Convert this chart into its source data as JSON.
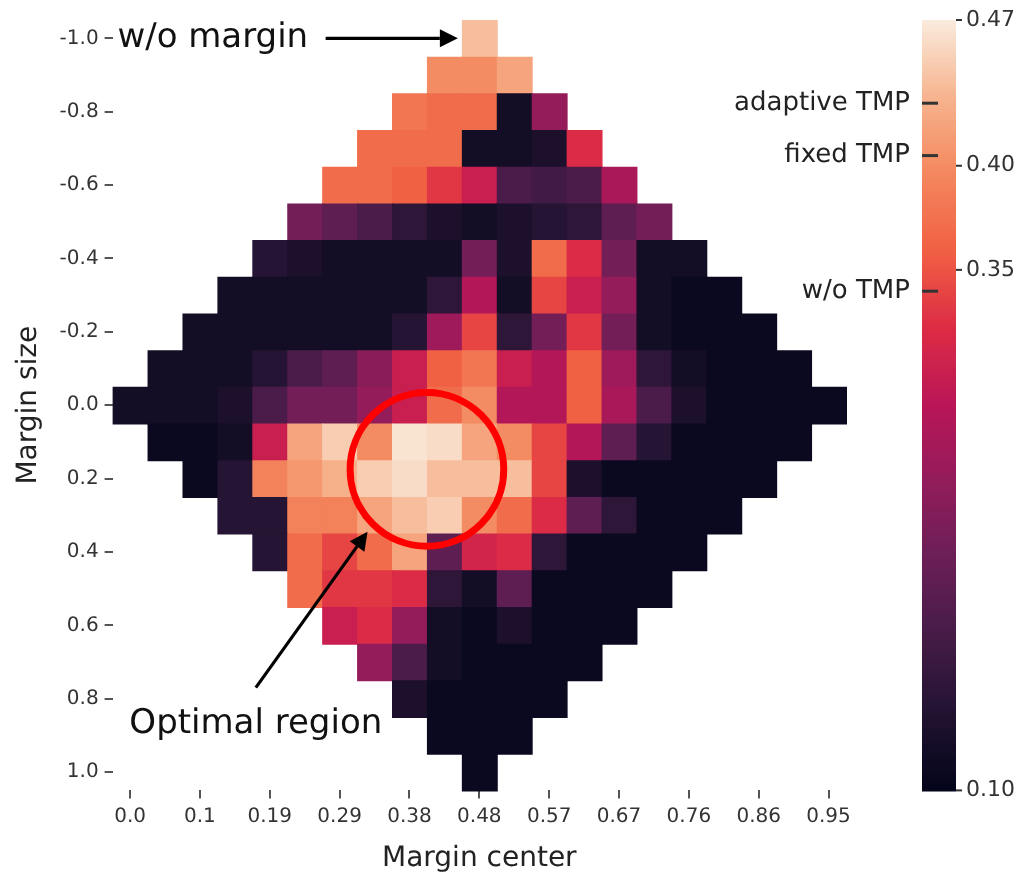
{
  "chart_data": {
    "type": "heatmap",
    "xlabel": "Margin center",
    "ylabel": "Margin size",
    "categories": [
      "0.0",
      null,
      "0.1",
      null,
      "0.19",
      null,
      "0.29",
      null,
      "0.38",
      null,
      "0.48",
      null,
      "0.57",
      null,
      "0.67",
      null,
      "0.76",
      null,
      "0.86",
      null,
      "0.95"
    ],
    "y_categories": [
      "-1.0",
      null,
      "-0.8",
      null,
      "-0.6",
      null,
      "-0.4",
      null,
      "-0.2",
      null,
      "0.0",
      null,
      "0.2",
      null,
      "0.4",
      null,
      "0.6",
      null,
      "0.8",
      null,
      "1.0"
    ],
    "cells": [
      [
        null,
        null,
        null,
        null,
        null,
        null,
        null,
        null,
        null,
        null,
        0.44,
        null,
        null,
        null,
        null,
        null,
        null,
        null,
        null,
        null,
        null
      ],
      [
        null,
        null,
        null,
        null,
        null,
        null,
        null,
        null,
        null,
        0.4,
        0.4,
        0.42,
        null,
        null,
        null,
        null,
        null,
        null,
        null,
        null,
        null
      ],
      [
        null,
        null,
        null,
        null,
        null,
        null,
        null,
        null,
        0.38,
        0.37,
        0.37,
        0.12,
        0.25,
        null,
        null,
        null,
        null,
        null,
        null,
        null,
        null
      ],
      [
        null,
        null,
        null,
        null,
        null,
        null,
        null,
        0.37,
        0.37,
        0.37,
        0.12,
        0.12,
        0.13,
        0.32,
        null,
        null,
        null,
        null,
        null,
        null,
        null
      ],
      [
        null,
        null,
        null,
        null,
        null,
        null,
        0.37,
        0.37,
        0.36,
        0.33,
        0.3,
        0.18,
        0.17,
        0.18,
        0.27,
        null,
        null,
        null,
        null,
        null,
        null
      ],
      [
        null,
        null,
        null,
        null,
        null,
        0.22,
        0.2,
        0.18,
        0.15,
        0.13,
        0.12,
        0.13,
        0.14,
        0.15,
        0.2,
        0.22,
        null,
        null,
        null,
        null,
        null
      ],
      [
        null,
        null,
        null,
        null,
        0.14,
        0.13,
        0.12,
        0.12,
        0.12,
        0.12,
        0.22,
        0.13,
        0.37,
        0.32,
        0.22,
        0.12,
        0.12,
        null,
        null,
        null,
        null
      ],
      [
        null,
        null,
        null,
        0.12,
        0.12,
        0.12,
        0.12,
        0.12,
        0.12,
        0.15,
        0.28,
        0.12,
        0.34,
        0.3,
        0.25,
        0.12,
        0.11,
        0.11,
        null,
        null,
        null
      ],
      [
        null,
        null,
        0.12,
        0.12,
        0.12,
        0.12,
        0.12,
        0.12,
        0.14,
        0.26,
        0.34,
        0.15,
        0.22,
        0.33,
        0.22,
        0.12,
        0.11,
        0.11,
        0.11,
        null,
        null
      ],
      [
        null,
        0.12,
        0.12,
        0.12,
        0.14,
        0.18,
        0.2,
        0.24,
        0.3,
        0.36,
        0.38,
        0.3,
        0.28,
        0.36,
        0.26,
        0.15,
        0.12,
        0.11,
        0.11,
        0.11,
        null
      ],
      [
        0.12,
        0.12,
        0.12,
        0.13,
        0.18,
        0.22,
        0.22,
        0.25,
        0.3,
        0.37,
        0.4,
        0.28,
        0.28,
        0.36,
        0.27,
        0.18,
        0.13,
        0.11,
        0.11,
        0.11,
        0.11
      ],
      [
        null,
        0.11,
        0.11,
        0.12,
        0.3,
        0.42,
        0.45,
        0.4,
        0.465,
        0.46,
        0.42,
        0.4,
        0.34,
        0.28,
        0.2,
        0.14,
        0.11,
        0.11,
        0.11,
        0.11,
        null
      ],
      [
        null,
        null,
        0.11,
        0.14,
        0.39,
        0.41,
        0.43,
        0.45,
        0.46,
        0.44,
        0.44,
        0.44,
        0.34,
        0.13,
        0.11,
        0.11,
        0.11,
        0.11,
        0.11,
        null,
        null
      ],
      [
        null,
        null,
        null,
        0.14,
        0.14,
        0.39,
        0.39,
        0.42,
        0.44,
        0.45,
        0.4,
        0.37,
        0.32,
        0.2,
        0.15,
        0.11,
        0.11,
        0.11,
        null,
        null,
        null
      ],
      [
        null,
        null,
        null,
        null,
        0.14,
        0.37,
        0.34,
        0.37,
        0.42,
        0.2,
        0.31,
        0.32,
        0.15,
        0.11,
        0.11,
        0.11,
        0.11,
        null,
        null,
        null,
        null
      ],
      [
        null,
        null,
        null,
        null,
        null,
        0.37,
        0.33,
        0.33,
        0.32,
        0.15,
        0.12,
        0.2,
        0.11,
        0.11,
        0.11,
        0.11,
        null,
        null,
        null,
        null,
        null
      ],
      [
        null,
        null,
        null,
        null,
        null,
        null,
        0.3,
        0.32,
        0.25,
        0.12,
        0.11,
        0.13,
        0.11,
        0.11,
        0.11,
        null,
        null,
        null,
        null,
        null,
        null
      ],
      [
        null,
        null,
        null,
        null,
        null,
        null,
        null,
        0.25,
        0.18,
        0.12,
        0.11,
        0.11,
        0.11,
        0.11,
        null,
        null,
        null,
        null,
        null,
        null,
        null
      ],
      [
        null,
        null,
        null,
        null,
        null,
        null,
        null,
        null,
        0.13,
        0.11,
        0.11,
        0.11,
        0.11,
        null,
        null,
        null,
        null,
        null,
        null,
        null,
        null
      ],
      [
        null,
        null,
        null,
        null,
        null,
        null,
        null,
        null,
        null,
        0.11,
        0.11,
        0.11,
        null,
        null,
        null,
        null,
        null,
        null,
        null,
        null,
        null
      ],
      [
        null,
        null,
        null,
        null,
        null,
        null,
        null,
        null,
        null,
        null,
        0.11,
        null,
        null,
        null,
        null,
        null,
        null,
        null,
        null,
        null,
        null
      ]
    ],
    "clim": [
      0.1,
      0.47
    ],
    "cticks": [
      {
        "value": 0.1,
        "label": "0.10"
      },
      0.35,
      {
        "value": 0.4,
        "label": "0.40"
      },
      0.47
    ],
    "annotations": [
      "w/o margin",
      "Optimal region",
      "adaptive TMP",
      "fixed TMP",
      "w/o TMP"
    ]
  }
}
